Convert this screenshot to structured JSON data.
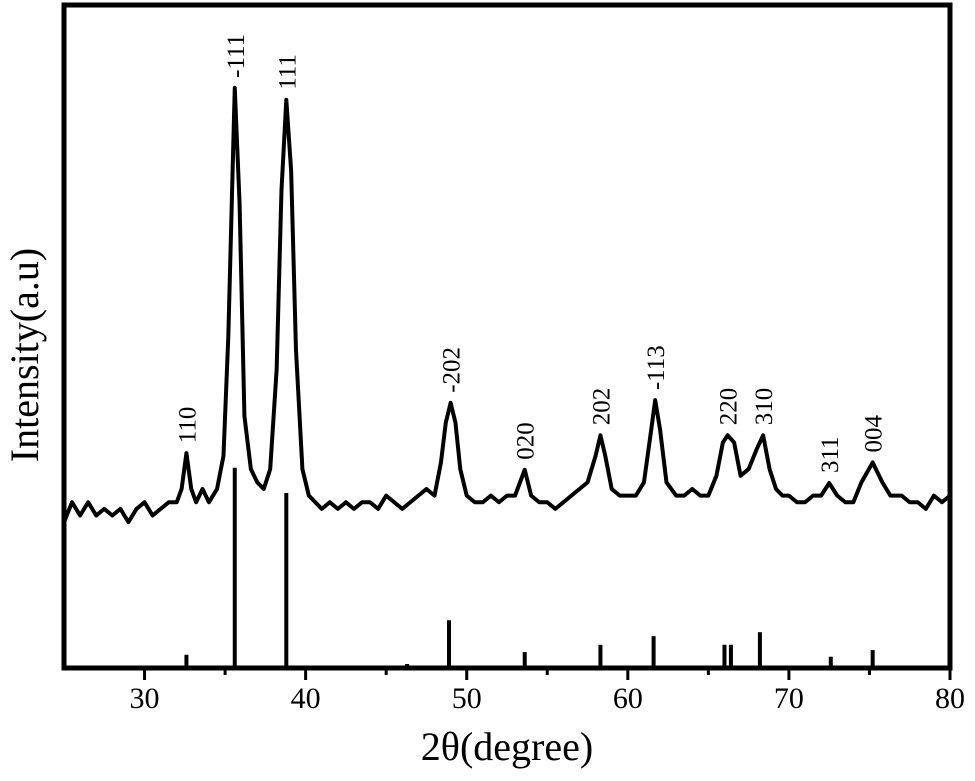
{
  "chart_data": [
    {
      "type": "line",
      "xlabel": "2θ(degree)",
      "ylabel": "Intensity(a.u)",
      "xlim": [
        25,
        80
      ],
      "ylim": [
        0,
        100
      ],
      "xticks": [
        30,
        40,
        50,
        60,
        70,
        80
      ],
      "x_minor_ticks": [
        35,
        45,
        55,
        65,
        75
      ],
      "color": "#000000",
      "x": [
        25,
        25.5,
        26,
        26.5,
        27,
        27.5,
        28,
        28.5,
        29,
        29.5,
        30,
        30.5,
        31,
        31.5,
        32,
        32.3,
        32.6,
        32.9,
        33.2,
        33.6,
        34,
        34.5,
        34.9,
        35.2,
        35.6,
        35.9,
        36.2,
        36.6,
        37,
        37.4,
        37.8,
        38.2,
        38.5,
        38.8,
        39.1,
        39.4,
        39.8,
        40.2,
        40.6,
        41,
        41.5,
        42,
        42.5,
        43,
        43.5,
        44,
        44.5,
        45,
        45.5,
        46,
        46.5,
        47,
        47.5,
        48,
        48.4,
        48.7,
        49,
        49.3,
        49.6,
        50,
        50.5,
        51,
        51.5,
        52,
        52.5,
        53,
        53.6,
        54,
        54.5,
        55,
        55.5,
        56,
        56.5,
        57,
        57.5,
        58,
        58.3,
        58.6,
        59,
        59.5,
        60,
        60.5,
        61,
        61.4,
        61.7,
        62,
        62.4,
        63,
        63.5,
        64,
        64.5,
        65,
        65.5,
        65.9,
        66.2,
        66.6,
        67,
        67.5,
        68,
        68.4,
        68.8,
        69.2,
        69.6,
        70,
        70.5,
        71,
        71.5,
        72,
        72.5,
        73,
        73.5,
        74,
        74.5,
        75.2,
        75.8,
        76.3,
        77,
        77.5,
        78,
        78.5,
        79,
        79.5,
        80
      ],
      "values": [
        22,
        25,
        23,
        25,
        23,
        24,
        23,
        24,
        22,
        24,
        25,
        23,
        24,
        25,
        25,
        27,
        32.4,
        27,
        25,
        27,
        25,
        27,
        32,
        50,
        87.5,
        70,
        38,
        30,
        28,
        27,
        30,
        45,
        72,
        85.7,
        75,
        48,
        30,
        26,
        25,
        24,
        25,
        24,
        25,
        24,
        25,
        25,
        24,
        26,
        25,
        24,
        25,
        26,
        27,
        26,
        31,
        37,
        40,
        37,
        30,
        26,
        25,
        25,
        26,
        25,
        26,
        26,
        29.9,
        26,
        25,
        25,
        24,
        25,
        26,
        27,
        28,
        32,
        35.1,
        32,
        27,
        26,
        26,
        26,
        28,
        35,
        40.4,
        36,
        28,
        26,
        26,
        27,
        26,
        26,
        29,
        34,
        35.1,
        34,
        29,
        30,
        33,
        35.1,
        30,
        27,
        26,
        26,
        25,
        25,
        26,
        26,
        27.9,
        26,
        25,
        25,
        28,
        31,
        28,
        26,
        26,
        25,
        25,
        24,
        26,
        25,
        26
      ],
      "peak_labels": [
        null,
        null,
        null,
        null,
        null,
        null,
        null,
        null,
        null,
        null,
        null,
        null,
        null,
        null,
        null,
        null,
        "110",
        null,
        null,
        null,
        null,
        null,
        null,
        null,
        "-111",
        null,
        null,
        null,
        null,
        null,
        null,
        null,
        null,
        "111",
        null,
        null,
        null,
        null,
        null,
        null,
        null,
        null,
        null,
        null,
        null,
        null,
        null,
        null,
        null,
        null,
        null,
        null,
        null,
        null,
        null,
        null,
        "-202",
        null,
        null,
        null,
        null,
        null,
        null,
        null,
        null,
        null,
        "020",
        null,
        null,
        null,
        null,
        null,
        null,
        null,
        null,
        null,
        "202",
        null,
        null,
        null,
        null,
        null,
        null,
        null,
        "-113",
        null,
        null,
        null,
        null,
        null,
        null,
        null,
        null,
        null,
        "220",
        null,
        null,
        null,
        null,
        "310",
        null,
        null,
        null,
        null,
        null,
        null,
        null,
        null,
        "311",
        null,
        null,
        null,
        null,
        "004",
        null,
        null,
        null,
        null,
        null,
        null,
        null,
        null,
        null
      ]
    },
    {
      "type": "stem",
      "xlim": [
        25,
        80
      ],
      "ylim": [
        0,
        100
      ],
      "color": "#000000",
      "x": [
        32.6,
        35.6,
        38.8,
        46.3,
        48.9,
        53.6,
        58.3,
        61.6,
        66.0,
        66.4,
        68.2,
        72.6,
        75.2
      ],
      "values": [
        2,
        30.2,
        26.4,
        0.6,
        7.2,
        2.4,
        3.5,
        4.8,
        3.5,
        3.5,
        5.4,
        1.7,
        2.7
      ]
    }
  ]
}
